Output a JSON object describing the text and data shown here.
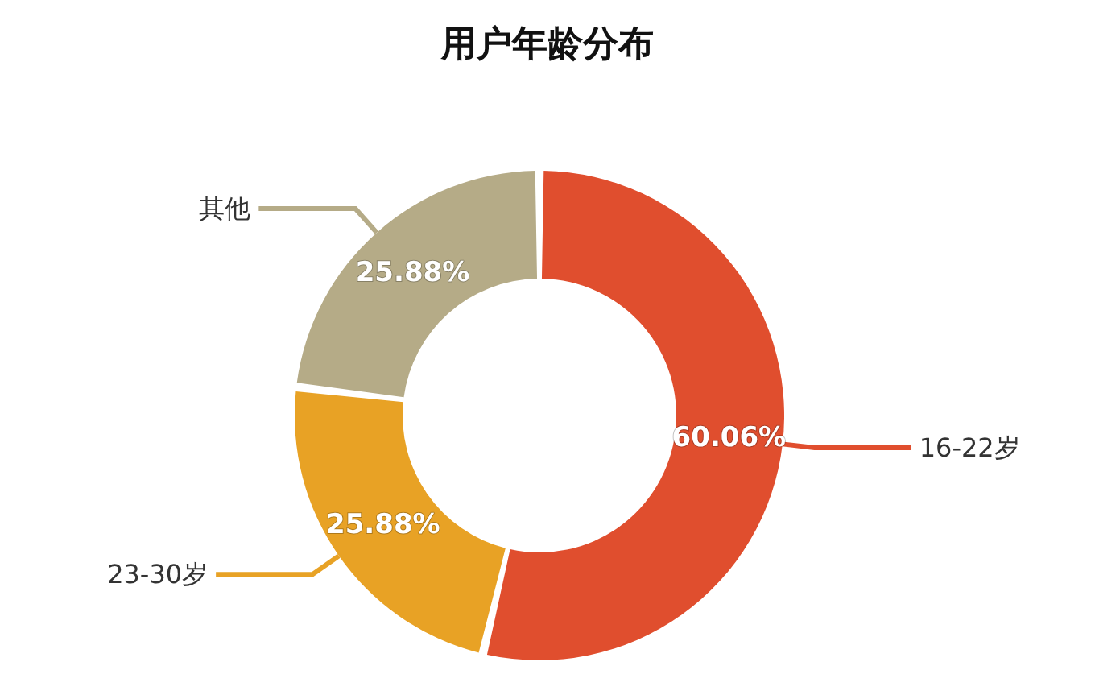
{
  "chart_data": {
    "type": "donut",
    "title": "用户年龄分布",
    "categories": [
      "16-22岁",
      "23-30岁",
      "其他"
    ],
    "values": [
      60.06,
      25.88,
      25.88
    ],
    "value_labels": [
      "60.06%",
      "25.88%",
      "25.88%"
    ],
    "colors": [
      "#e04e2e",
      "#e8a225",
      "#b5ab87"
    ],
    "legend": false
  }
}
